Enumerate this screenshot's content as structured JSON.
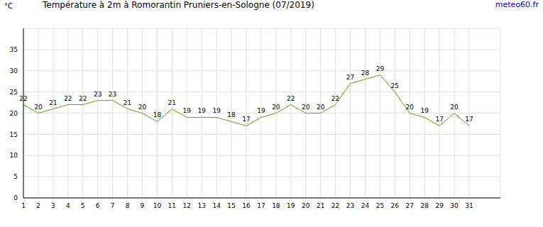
{
  "chart_data": {
    "type": "line",
    "title": "Température à 2m à Romorantin Pruniers-en-Sologne (07/2019)",
    "y_label": "°C",
    "annotation": "meteo60.fr",
    "categories": [
      "1",
      "2",
      "3",
      "4",
      "5",
      "6",
      "7",
      "8",
      "9",
      "10",
      "11",
      "12",
      "13",
      "14",
      "15",
      "16",
      "17",
      "18",
      "19",
      "20",
      "21",
      "22",
      "23",
      "24",
      "25",
      "26",
      "27",
      "28",
      "29",
      "30",
      "31"
    ],
    "values": [
      22,
      20,
      21,
      22,
      22,
      23,
      23,
      21,
      20,
      18,
      21,
      19,
      19,
      19,
      18,
      17,
      19,
      20,
      22,
      20,
      20,
      22,
      27,
      28,
      29,
      25,
      20,
      19,
      17,
      20,
      17
    ],
    "color": "#55aa00",
    "ylim": [
      0,
      40
    ],
    "yticks": [
      0,
      5,
      10,
      15,
      20,
      25,
      30,
      35
    ],
    "grid": true,
    "data_labels": true
  }
}
